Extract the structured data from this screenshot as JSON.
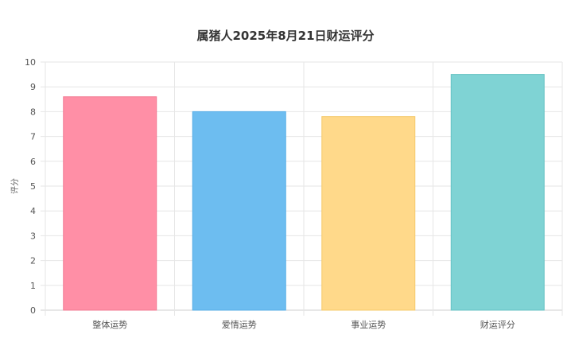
{
  "chart_data": {
    "type": "bar",
    "title": "属猪人2025年8月21日财运评分",
    "xlabel": "",
    "ylabel": "评分",
    "ylim": [
      0,
      10
    ],
    "yticks": [
      0,
      1,
      2,
      3,
      4,
      5,
      6,
      7,
      8,
      9,
      10
    ],
    "grid": true,
    "categories": [
      "整体运势",
      "爱情运势",
      "事业运势",
      "财运评分"
    ],
    "values": [
      8.6,
      8.0,
      7.8,
      9.5
    ],
    "colors": [
      "#FF8FA6",
      "#6DBDF0",
      "#FFD98A",
      "#7FD3D4"
    ],
    "border_colors": [
      "#F27A93",
      "#56ADE6",
      "#F5C96A",
      "#66C2C3"
    ]
  }
}
